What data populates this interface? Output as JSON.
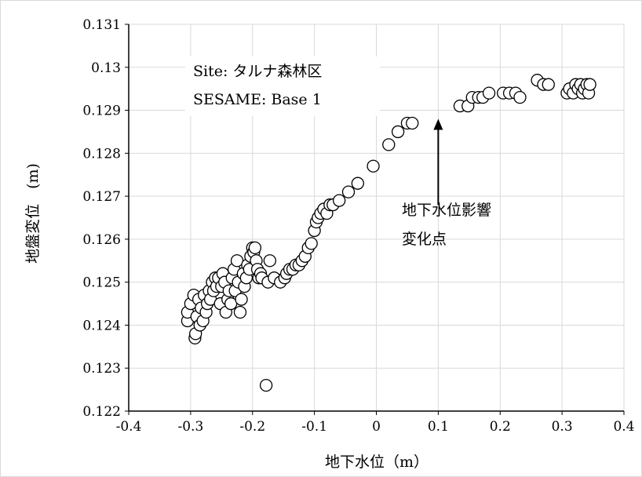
{
  "chart_data": {
    "type": "scatter",
    "title": "",
    "xlabel": "地下水位（m）",
    "ylabel": "地盤変位　(m)",
    "xlim": [
      -0.4,
      0.4
    ],
    "ylim": [
      0.122,
      0.131
    ],
    "x_ticks": [
      "-0.4",
      "-0.3",
      "-0.2",
      "-0.1",
      "0",
      "0.1",
      "0.2",
      "0.3",
      "0.4"
    ],
    "y_ticks": [
      "0.122",
      "0.123",
      "0.124",
      "0.125",
      "0.126",
      "0.127",
      "0.128",
      "0.129",
      "0.13",
      "0.131"
    ],
    "grid": true,
    "marker": "open-circle",
    "colors": {
      "gridline": "#d9d9d9",
      "axis": "#000000",
      "marker_fill": "#ffffff",
      "marker_stroke": "#000000"
    },
    "annotations": {
      "site_line1": "Site: タルナ森林区",
      "site_line2": "SESAME: Base 1",
      "arrow_line1": "地下水位影響",
      "arrow_line2": "変化点"
    },
    "arrow": {
      "x": 0.1,
      "y_from": 0.1268,
      "y_to": 0.1288
    },
    "series": [
      {
        "points": [
          [
            -0.305,
            0.1241
          ],
          [
            -0.305,
            0.1243
          ],
          [
            -0.3,
            0.1245
          ],
          [
            -0.295,
            0.1247
          ],
          [
            -0.293,
            0.1237
          ],
          [
            -0.292,
            0.1238
          ],
          [
            -0.29,
            0.1242
          ],
          [
            -0.287,
            0.1246
          ],
          [
            -0.285,
            0.124
          ],
          [
            -0.283,
            0.1244
          ],
          [
            -0.28,
            0.1241
          ],
          [
            -0.278,
            0.1247
          ],
          [
            -0.275,
            0.1243
          ],
          [
            -0.273,
            0.1245
          ],
          [
            -0.27,
            0.1248
          ],
          [
            -0.268,
            0.1246
          ],
          [
            -0.265,
            0.125
          ],
          [
            -0.263,
            0.1248
          ],
          [
            -0.26,
            0.1251
          ],
          [
            -0.258,
            0.1249
          ],
          [
            -0.255,
            0.1251
          ],
          [
            -0.252,
            0.1245
          ],
          [
            -0.25,
            0.1249
          ],
          [
            -0.248,
            0.1252
          ],
          [
            -0.245,
            0.125
          ],
          [
            -0.243,
            0.1243
          ],
          [
            -0.24,
            0.1246
          ],
          [
            -0.238,
            0.1248
          ],
          [
            -0.235,
            0.1245
          ],
          [
            -0.233,
            0.1251
          ],
          [
            -0.23,
            0.1253
          ],
          [
            -0.228,
            0.1248
          ],
          [
            -0.225,
            0.1255
          ],
          [
            -0.223,
            0.125
          ],
          [
            -0.22,
            0.1243
          ],
          [
            -0.218,
            0.1246
          ],
          [
            -0.215,
            0.1252
          ],
          [
            -0.213,
            0.1249
          ],
          [
            -0.21,
            0.1251
          ],
          [
            -0.208,
            0.1254
          ],
          [
            -0.205,
            0.1253
          ],
          [
            -0.203,
            0.1256
          ],
          [
            -0.2,
            0.1258
          ],
          [
            -0.198,
            0.1257
          ],
          [
            -0.196,
            0.1258
          ],
          [
            -0.194,
            0.1255
          ],
          [
            -0.192,
            0.1253
          ],
          [
            -0.19,
            0.1251
          ],
          [
            -0.187,
            0.1252
          ],
          [
            -0.185,
            0.1251
          ],
          [
            -0.175,
            0.125
          ],
          [
            -0.172,
            0.1255
          ],
          [
            -0.165,
            0.1251
          ],
          [
            -0.155,
            0.125
          ],
          [
            -0.148,
            0.1251
          ],
          [
            -0.145,
            0.1252
          ],
          [
            -0.14,
            0.1253
          ],
          [
            -0.135,
            0.1253
          ],
          [
            -0.13,
            0.1254
          ],
          [
            -0.125,
            0.1254
          ],
          [
            -0.12,
            0.1255
          ],
          [
            -0.115,
            0.1256
          ],
          [
            -0.11,
            0.1258
          ],
          [
            -0.105,
            0.1259
          ],
          [
            -0.1,
            0.1262
          ],
          [
            -0.097,
            0.1264
          ],
          [
            -0.094,
            0.1265
          ],
          [
            -0.09,
            0.1266
          ],
          [
            -0.085,
            0.1267
          ],
          [
            -0.08,
            0.1266
          ],
          [
            -0.075,
            0.1268
          ],
          [
            -0.07,
            0.1268
          ],
          [
            -0.06,
            0.1269
          ],
          [
            -0.045,
            0.1271
          ],
          [
            -0.03,
            0.1273
          ],
          [
            -0.005,
            0.1277
          ],
          [
            0.02,
            0.1282
          ],
          [
            0.035,
            0.1285
          ],
          [
            0.05,
            0.1287
          ],
          [
            0.058,
            0.1287
          ],
          [
            0.135,
            0.1291
          ],
          [
            0.148,
            0.1291
          ],
          [
            0.155,
            0.1293
          ],
          [
            0.165,
            0.1293
          ],
          [
            0.172,
            0.1293
          ],
          [
            0.182,
            0.1294
          ],
          [
            0.205,
            0.1294
          ],
          [
            0.215,
            0.1294
          ],
          [
            0.225,
            0.1294
          ],
          [
            0.232,
            0.1293
          ],
          [
            0.26,
            0.1297
          ],
          [
            0.27,
            0.1296
          ],
          [
            0.278,
            0.1296
          ],
          [
            0.308,
            0.1294
          ],
          [
            0.312,
            0.1295
          ],
          [
            0.318,
            0.1294
          ],
          [
            0.322,
            0.1296
          ],
          [
            0.326,
            0.1295
          ],
          [
            0.33,
            0.1296
          ],
          [
            0.333,
            0.1294
          ],
          [
            0.336,
            0.1295
          ],
          [
            0.34,
            0.1296
          ],
          [
            0.343,
            0.1294
          ],
          [
            0.345,
            0.1296
          ],
          [
            -0.178,
            0.1226
          ]
        ]
      }
    ]
  }
}
